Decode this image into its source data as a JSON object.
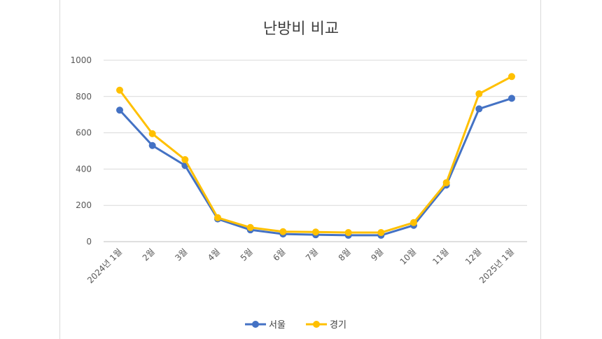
{
  "chart_data": {
    "type": "line",
    "title": "난방비 비교",
    "categories": [
      "2024년 1월",
      "2월",
      "3월",
      "4월",
      "5월",
      "6월",
      "7월",
      "8월",
      "9월",
      "10월",
      "11월",
      "12월",
      "2025년 1월"
    ],
    "series": [
      {
        "name": "서울",
        "color": "#4472c4",
        "values": [
          725,
          530,
          420,
          125,
          65,
          42,
          38,
          35,
          35,
          90,
          312,
          732,
          790
        ]
      },
      {
        "name": "경기",
        "color": "#ffc000",
        "values": [
          835,
          595,
          452,
          132,
          78,
          55,
          53,
          50,
          50,
          105,
          325,
          815,
          910
        ]
      }
    ],
    "y_ticks": [
      0,
      200,
      400,
      600,
      800,
      1000
    ],
    "ylim": [
      0,
      1000
    ],
    "grid": true,
    "legend_position": "bottom"
  }
}
